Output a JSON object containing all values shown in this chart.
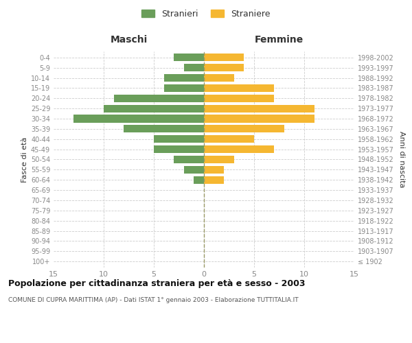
{
  "age_groups": [
    "100+",
    "95-99",
    "90-94",
    "85-89",
    "80-84",
    "75-79",
    "70-74",
    "65-69",
    "60-64",
    "55-59",
    "50-54",
    "45-49",
    "40-44",
    "35-39",
    "30-34",
    "25-29",
    "20-24",
    "15-19",
    "10-14",
    "5-9",
    "0-4"
  ],
  "birth_years": [
    "≤ 1902",
    "1903-1907",
    "1908-1912",
    "1913-1917",
    "1918-1922",
    "1923-1927",
    "1928-1932",
    "1933-1937",
    "1938-1942",
    "1943-1947",
    "1948-1952",
    "1953-1957",
    "1958-1962",
    "1963-1967",
    "1968-1972",
    "1973-1977",
    "1978-1982",
    "1983-1987",
    "1988-1992",
    "1993-1997",
    "1998-2002"
  ],
  "males": [
    0,
    0,
    0,
    0,
    0,
    0,
    0,
    0,
    1,
    2,
    3,
    5,
    5,
    8,
    13,
    10,
    9,
    4,
    4,
    2,
    3
  ],
  "females": [
    0,
    0,
    0,
    0,
    0,
    0,
    0,
    0,
    2,
    2,
    3,
    7,
    5,
    8,
    11,
    11,
    7,
    7,
    3,
    4,
    4
  ],
  "male_color": "#6a9e5a",
  "female_color": "#f5b731",
  "background_color": "#ffffff",
  "grid_color": "#cccccc",
  "title": "Popolazione per cittadinanza straniera per età e sesso - 2003",
  "subtitle": "COMUNE DI CUPRA MARITTIMA (AP) - Dati ISTAT 1° gennaio 2003 - Elaborazione TUTTITALIA.IT",
  "xlabel_left": "Maschi",
  "xlabel_right": "Femmine",
  "ylabel_left": "Fasce di età",
  "ylabel_right": "Anni di nascita",
  "legend_male": "Stranieri",
  "legend_female": "Straniere",
  "xlim": 15,
  "bar_height": 0.75,
  "tick_color": "#888888",
  "text_color": "#333333",
  "dashed_color": "#999966"
}
